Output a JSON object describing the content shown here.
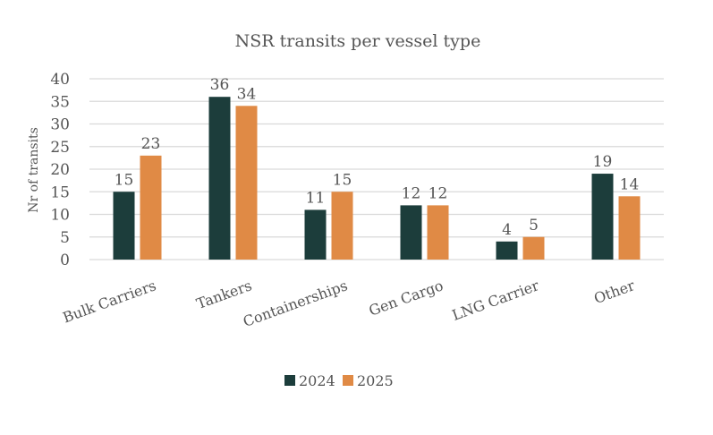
{
  "chart_data": {
    "type": "bar",
    "title": "NSR transits per vessel type",
    "xlabel": "",
    "ylabel": "Nr of transits",
    "ylim": [
      0,
      40
    ],
    "yticks": [
      0,
      5,
      10,
      15,
      20,
      25,
      30,
      35,
      40
    ],
    "grid": true,
    "legend_position": "bottom",
    "categories": [
      "Bulk Carriers",
      "Tankers",
      "Containerships",
      "Gen Cargo",
      "LNG Carrier",
      "Other"
    ],
    "series": [
      {
        "name": "2024",
        "color": "#1c3d3b",
        "values": [
          15,
          36,
          11,
          12,
          4,
          19
        ]
      },
      {
        "name": "2025",
        "color": "#e08a45",
        "values": [
          23,
          34,
          15,
          12,
          5,
          14
        ]
      }
    ]
  }
}
